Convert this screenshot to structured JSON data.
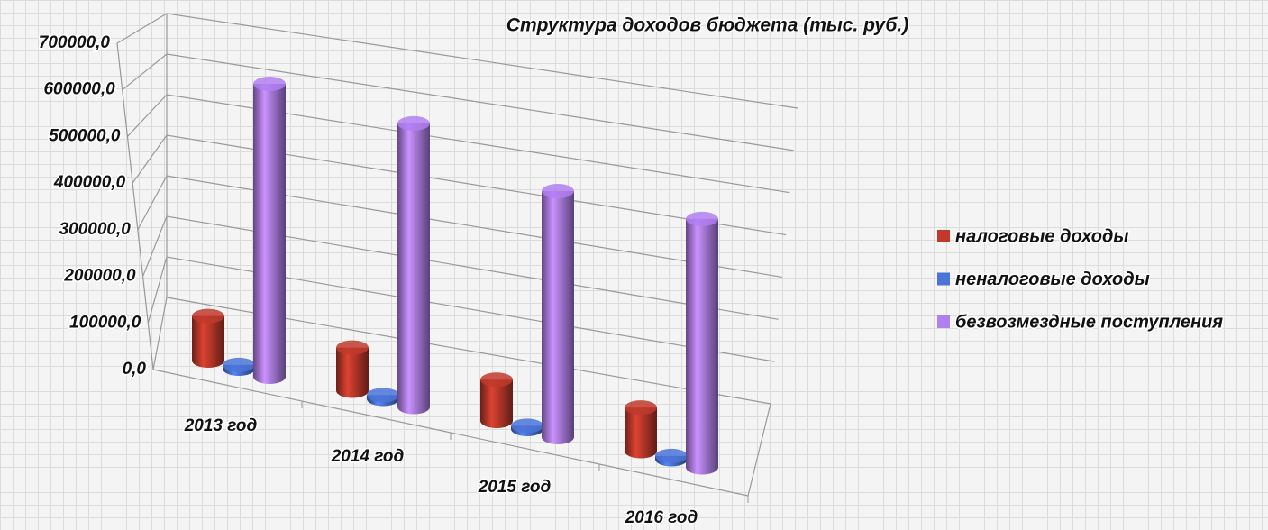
{
  "chart_data": {
    "type": "bar3d",
    "title": "Структура доходов бюджета (тыс. руб.)",
    "categories": [
      "2013 год",
      "2014 год",
      "2015 год",
      "2016 год"
    ],
    "series": [
      {
        "name": "налоговые доходы",
        "color": "#c0392b",
        "values": [
          95000,
          92000,
          88000,
          93000
        ]
      },
      {
        "name": "неналоговые доходы",
        "color": "#4a74d8",
        "values": [
          8000,
          8000,
          7000,
          7000
        ]
      },
      {
        "name": "безвозмездные поступления",
        "color": "#b07ff0",
        "values": [
          625000,
          605000,
          525000,
          530000
        ]
      }
    ],
    "ylim": [
      0,
      700000
    ],
    "yticks": [
      {
        "value": 0,
        "label": "0,0"
      },
      {
        "value": 100000,
        "label": "100000,0"
      },
      {
        "value": 200000,
        "label": "200000,0"
      },
      {
        "value": 300000,
        "label": "300000,0"
      },
      {
        "value": 400000,
        "label": "400000,0"
      },
      {
        "value": 500000,
        "label": "500000,0"
      },
      {
        "value": 600000,
        "label": "600000,0"
      },
      {
        "value": 700000,
        "label": "700000,0"
      }
    ],
    "grid": true,
    "legend": "right"
  }
}
